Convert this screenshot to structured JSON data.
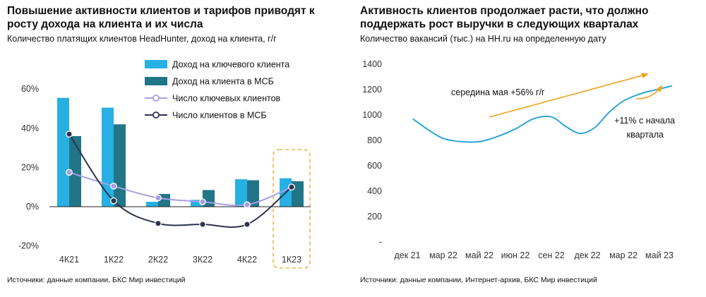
{
  "colors": {
    "light_blue": "#26b0e3",
    "dark_teal": "#217587",
    "lavender": "#a99ee6",
    "navy": "#2d3350",
    "orange": "#f0a21d",
    "line_blue": "#2aa6d8"
  },
  "left": {
    "title": "Повышение активности клиентов и тарифов приводят к росту дохода на клиента и их числа",
    "subtitle": "Количество платящих клиентов HeadHunter, доход на клиента, г/г",
    "source": "Источники: данные компании, БКС Мир инвестиций"
  },
  "right": {
    "title": "Активность клиентов продолжает расти, что должно поддержать рост выручки в следующих кварталах",
    "subtitle": "Количество вакансий (тыс.) на HH.ru на определенную дату",
    "source": "Источники: данные компании, Интернет-архив, БКС Мир инвестиций",
    "annotation_trend": "середина мая +56% г/г",
    "annotation_quarter_line1": "+11% с начала",
    "annotation_quarter_line2": "квартала"
  },
  "chart_data": [
    {
      "type": "bar",
      "categories": [
        "4К21",
        "1К22",
        "2К22",
        "3К22",
        "4К22",
        "1К23"
      ],
      "ylim": [
        -20,
        60
      ],
      "y_ticks": [
        "-20%",
        "0%",
        "20%",
        "40%",
        "60%"
      ],
      "highlighted_category": "1К23",
      "series": [
        {
          "name": "Доход на ключевого клиента",
          "kind": "bar",
          "color": "#26b0e3",
          "values": [
            55.5,
            50.5,
            2.5,
            3.5,
            14,
            14.5
          ]
        },
        {
          "name": "Доход на клиента в МСБ",
          "kind": "bar",
          "color": "#217587",
          "values": [
            36,
            42,
            6.5,
            8.5,
            13.5,
            13
          ]
        },
        {
          "name": "Число ключевых клиентов",
          "kind": "line",
          "color": "#a99ee6",
          "values": [
            17.5,
            10.5,
            4.5,
            2.5,
            1,
            10
          ]
        },
        {
          "name": "Число клиентов в МСБ",
          "kind": "line",
          "color": "#2d3350",
          "values": [
            37,
            3,
            -8.5,
            -9,
            -9,
            10
          ]
        }
      ]
    },
    {
      "type": "line",
      "ylim": [
        0,
        1400
      ],
      "y_ticks": [
        "-",
        "200",
        "400",
        "600",
        "800",
        "1000",
        "1200",
        "1400"
      ],
      "x_ticks": [
        "дек 21",
        "мар 22",
        "май 22",
        "июн 22",
        "сен 22",
        "дек 22",
        "мар 22",
        "май 23"
      ],
      "series": [
        {
          "color": "#2aa6d8",
          "x": [
            0.15,
            0.6,
            1.0,
            1.5,
            2.0,
            2.5,
            3.0,
            3.5,
            4.0,
            4.4,
            4.8,
            5.2,
            5.6,
            6.0,
            6.5,
            7.0,
            7.35
          ],
          "y": [
            970,
            880,
            815,
            790,
            790,
            830,
            890,
            970,
            985,
            910,
            855,
            900,
            1020,
            1110,
            1170,
            1205,
            1230
          ]
        }
      ]
    }
  ]
}
